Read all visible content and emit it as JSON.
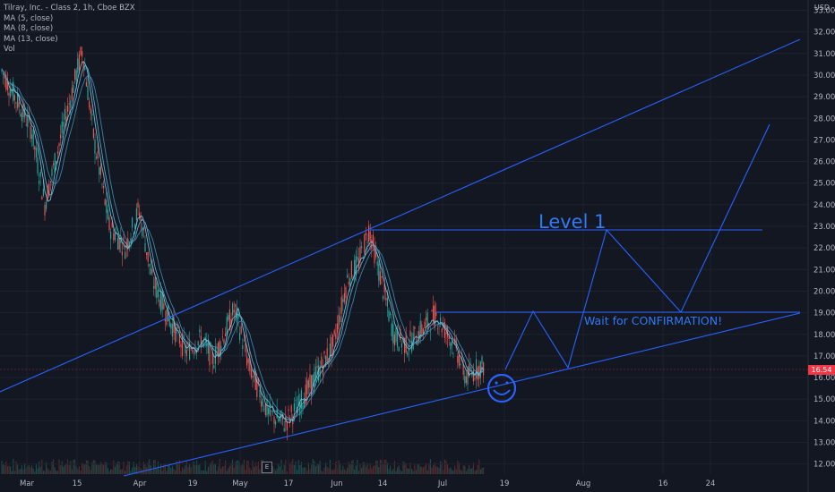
{
  "legend": {
    "title": "Tilray, Inc. - Class 2, 1h, Cboe BZX",
    "indicators": [
      "MA (5, close)",
      "MA (8, close)",
      "MA (13, close)",
      "Vol"
    ]
  },
  "currency_label": "USD",
  "last_price_tag": "16.54",
  "earnings_marker": "E",
  "colors": {
    "background": "#131722",
    "candle_up": "#26a69a",
    "candle_down": "#ef5350",
    "ma_line": "#5fb3d3",
    "annotation": "#2962ff",
    "annotation_text": "#3179f5",
    "price_tag": "#f23645",
    "axis_text": "#b2b5be"
  },
  "annotations": {
    "level_label": "Level 1",
    "wait_label": "Wait for CONFIRMATION!",
    "smiley": "smiley-face"
  },
  "chart_data": {
    "type": "candlestick",
    "title": "Tilray, Inc. - Class 2, 1h, Cboe BZX",
    "ylabel": "USD",
    "ylim": [
      11.8,
      33.1
    ],
    "y_ticks": [
      "12.00",
      "13.00",
      "14.00",
      "15.00",
      "16.00",
      "17.00",
      "18.00",
      "19.00",
      "20.00",
      "21.00",
      "22.00",
      "23.00",
      "24.00",
      "25.00",
      "26.00",
      "27.00",
      "28.00",
      "29.00",
      "30.00",
      "31.00",
      "32.00",
      "33.00"
    ],
    "x_ticks": [
      "Mar",
      "15",
      "Apr",
      "19",
      "May",
      "17",
      "Jun",
      "14",
      "Jul",
      "19",
      "Aug",
      "16",
      "24"
    ],
    "close_path_keypoints": [
      {
        "x": "Mar 01",
        "y": 30.2
      },
      {
        "x": "Mar 05",
        "y": 27.5
      },
      {
        "x": "Mar 08",
        "y": 24.0
      },
      {
        "x": "Mar 11",
        "y": 26.8
      },
      {
        "x": "Mar 15",
        "y": 31.2
      },
      {
        "x": "Mar 18",
        "y": 27.0
      },
      {
        "x": "Mar 22",
        "y": 23.0
      },
      {
        "x": "Mar 26",
        "y": 22.0
      },
      {
        "x": "Apr 01",
        "y": 23.8
      },
      {
        "x": "Apr 06",
        "y": 20.5
      },
      {
        "x": "Apr 09",
        "y": 18.6
      },
      {
        "x": "Apr 15",
        "y": 17.2
      },
      {
        "x": "Apr 20",
        "y": 17.8
      },
      {
        "x": "Apr 23",
        "y": 16.8
      },
      {
        "x": "Apr 27",
        "y": 18.2
      },
      {
        "x": "May 01",
        "y": 19.2
      },
      {
        "x": "May 06",
        "y": 16.5
      },
      {
        "x": "May 12",
        "y": 14.3
      },
      {
        "x": "May 15",
        "y": 13.9
      },
      {
        "x": "May 20",
        "y": 14.8
      },
      {
        "x": "May 25",
        "y": 15.9
      },
      {
        "x": "May 31",
        "y": 17.5
      },
      {
        "x": "Jun 03",
        "y": 20.6
      },
      {
        "x": "Jun 07",
        "y": 21.3
      },
      {
        "x": "Jun 10",
        "y": 22.9
      },
      {
        "x": "Jun 13",
        "y": 20.0
      },
      {
        "x": "Jun 17",
        "y": 17.9
      },
      {
        "x": "Jun 22",
        "y": 17.5
      },
      {
        "x": "Jun 28",
        "y": 18.9
      },
      {
        "x": "Jul 02",
        "y": 18.0
      },
      {
        "x": "Jul 06",
        "y": 17.0
      },
      {
        "x": "Jul 09",
        "y": 16.0
      },
      {
        "x": "Jul 13",
        "y": 16.4
      },
      {
        "x": "Jul 15",
        "y": 16.54
      }
    ],
    "last_price": 16.54,
    "grid": true,
    "legend_position": "top-left"
  }
}
